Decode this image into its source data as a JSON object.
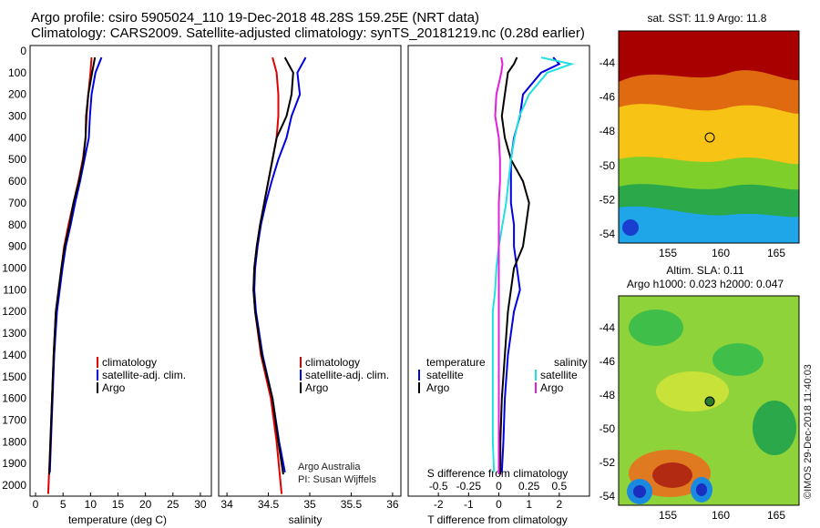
{
  "header": {
    "title_line1": "Argo profile: csiro 5905024_110 19-Dec-2018 48.28S 159.25E (NRT data)",
    "title_line2": "Climatology: CARS2009. Satellite-adjusted climatology: synTS_20181219.nc (0.28d earlier)"
  },
  "panels": {
    "temperature": {
      "xlabel": "temperature (deg C)"
    },
    "salinity": {
      "xlabel": "salinity"
    },
    "difference": {
      "xlabel": "T difference from climatology",
      "s_label": "S difference from climatology"
    }
  },
  "legends": {
    "climatology": "climatology",
    "satellite_adj": "satellite-adj. clim.",
    "argo": "Argo",
    "temperature": "temperature",
    "salinity": "salinity",
    "satellite": "satellite"
  },
  "credits": {
    "org": "Argo Australia",
    "pi": "PI: Susan Wijffels",
    "timestamp": "©IMOS 29-Dec-2018 11:40:03"
  },
  "maps": {
    "sst": {
      "title": "sat. SST: 11.9  Argo: 11.8",
      "xticks": [
        "155",
        "160",
        "165"
      ],
      "yticks": [
        "-44",
        "-46",
        "-48",
        "-50",
        "-52",
        "-54"
      ]
    },
    "sla": {
      "title_line1": "Altim. SLA: 0.11",
      "title_line2": "Argo h1000: 0.023 h2000: 0.047",
      "xticks": [
        "155",
        "160",
        "165"
      ],
      "yticks": [
        "-44",
        "-46",
        "-48",
        "-50",
        "-52",
        "-54"
      ]
    }
  },
  "colors": {
    "climatology": "#e00000",
    "satellite": "#0000e0",
    "argo": "#000000",
    "s_satellite": "#22e0e0",
    "s_argo": "#e020e0"
  },
  "chart_data": [
    {
      "type": "line",
      "xlabel": "temperature (deg C)",
      "ylabel": "",
      "xlim": [
        -1,
        32
      ],
      "ylim": [
        2050,
        0
      ],
      "xticks": [
        0,
        5,
        10,
        15,
        20,
        25,
        30
      ],
      "yticks": [
        0,
        100,
        200,
        300,
        400,
        500,
        600,
        700,
        800,
        900,
        1000,
        1100,
        1200,
        1300,
        1400,
        1500,
        1600,
        1700,
        1800,
        1900,
        2000
      ],
      "series": [
        {
          "name": "climatology",
          "depth": [
            30,
            100,
            200,
            300,
            400,
            500,
            600,
            700,
            800,
            900,
            1000,
            1200,
            1400,
            1600,
            1800,
            2040
          ],
          "values": [
            10.2,
            10.0,
            9.6,
            9.3,
            9.1,
            8.6,
            7.8,
            6.9,
            6.0,
            5.2,
            4.7,
            3.7,
            3.3,
            3.0,
            2.7,
            2.3
          ]
        },
        {
          "name": "satellite-adj. clim.",
          "depth": [
            30,
            100,
            200,
            300,
            400,
            500,
            600,
            700,
            800,
            900,
            1000,
            1200,
            1400,
            1600,
            1800,
            1940
          ],
          "values": [
            12.0,
            10.9,
            10.2,
            9.9,
            9.7,
            8.9,
            8.1,
            7.2,
            6.4,
            5.5,
            4.9,
            3.9,
            3.4,
            3.1,
            2.8,
            2.6
          ]
        },
        {
          "name": "Argo",
          "depth": [
            30,
            100,
            200,
            300,
            400,
            500,
            600,
            700,
            800,
            900,
            1000,
            1200,
            1400,
            1600,
            1800,
            1950
          ],
          "values": [
            10.8,
            10.3,
            9.6,
            9.2,
            9.1,
            8.7,
            7.9,
            6.9,
            6.2,
            5.3,
            4.7,
            3.7,
            3.3,
            3.0,
            2.7,
            2.5
          ]
        }
      ]
    },
    {
      "type": "line",
      "xlabel": "salinity",
      "ylabel": "",
      "xlim": [
        33.9,
        36.1
      ],
      "ylim": [
        2050,
        0
      ],
      "xticks": [
        34,
        34.5,
        35,
        35.5,
        36
      ],
      "series": [
        {
          "name": "climatology",
          "depth": [
            30,
            100,
            200,
            300,
            400,
            500,
            600,
            700,
            800,
            900,
            1000,
            1100,
            1200,
            1400,
            1600,
            1800,
            2040
          ],
          "values": [
            34.55,
            34.6,
            34.62,
            34.62,
            34.6,
            34.55,
            34.5,
            34.45,
            34.4,
            34.36,
            34.33,
            34.32,
            34.34,
            34.41,
            34.53,
            34.6,
            34.66
          ]
        },
        {
          "name": "satellite-adj. clim.",
          "depth": [
            30,
            100,
            200,
            300,
            400,
            500,
            600,
            700,
            800,
            900,
            1000,
            1100,
            1200,
            1400,
            1600,
            1800,
            1940
          ],
          "values": [
            34.95,
            34.85,
            34.88,
            34.78,
            34.72,
            34.62,
            34.54,
            34.47,
            34.41,
            34.37,
            34.34,
            34.33,
            34.35,
            34.43,
            34.55,
            34.63,
            34.7
          ]
        },
        {
          "name": "Argo",
          "depth": [
            30,
            100,
            200,
            300,
            400,
            500,
            600,
            700,
            800,
            900,
            1000,
            1100,
            1200,
            1400,
            1600,
            1800,
            1950
          ],
          "values": [
            34.7,
            34.8,
            34.78,
            34.72,
            34.6,
            34.55,
            34.5,
            34.45,
            34.4,
            34.36,
            34.33,
            34.32,
            34.34,
            34.42,
            34.55,
            34.62,
            34.68
          ]
        }
      ]
    },
    {
      "type": "line",
      "xlabel": "T difference from climatology",
      "ylabel": "",
      "xlim": [
        -3,
        3
      ],
      "ylim": [
        2050,
        0
      ],
      "xticks": [
        -2,
        -1,
        0,
        1,
        2
      ],
      "secondary_xlabel": "S difference from climatology",
      "secondary_xticks": [
        "-0.5",
        "-0.25",
        "0",
        "0.25",
        "0.5"
      ],
      "series": [
        {
          "name": "temperature satellite",
          "depth": [
            30,
            60,
            100,
            200,
            300,
            400,
            500,
            600,
            700,
            800,
            900,
            1000,
            1100,
            1200,
            1400,
            1600,
            1800,
            1940
          ],
          "values": [
            1.8,
            2.0,
            1.4,
            0.8,
            0.7,
            0.5,
            0.4,
            0.4,
            0.4,
            0.5,
            0.5,
            0.6,
            0.7,
            0.5,
            0.3,
            0.2,
            0.15,
            0.1
          ]
        },
        {
          "name": "temperature Argo",
          "depth": [
            30,
            60,
            100,
            200,
            300,
            400,
            500,
            600,
            700,
            800,
            900,
            1000,
            1100,
            1200,
            1400,
            1600,
            1800,
            1950
          ],
          "values": [
            0.6,
            0.5,
            0.3,
            0.2,
            0.1,
            0.2,
            0.4,
            0.8,
            1.0,
            0.9,
            0.8,
            0.5,
            0.4,
            0.3,
            0.2,
            0.1,
            0.05,
            0.05
          ]
        },
        {
          "name": "salinity satellite",
          "depth": [
            30,
            60,
            100,
            200,
            300,
            400,
            500,
            600,
            700,
            800,
            900,
            1000,
            1100,
            1200,
            1400,
            1600,
            1800,
            1940
          ],
          "values": [
            0.35,
            0.6,
            0.4,
            0.25,
            0.17,
            0.13,
            0.1,
            0.08,
            0.06,
            0.03,
            0.0,
            -0.02,
            -0.03,
            -0.05,
            -0.05,
            -0.05,
            -0.05,
            -0.04
          ]
        },
        {
          "name": "salinity Argo",
          "depth": [
            30,
            60,
            100,
            200,
            300,
            400,
            500,
            600,
            700,
            800,
            900,
            1000,
            1100,
            1200,
            1400,
            1600,
            1800,
            1950
          ],
          "values": [
            0.02,
            0.03,
            0.02,
            -0.02,
            -0.03,
            0.0,
            0.01,
            0.01,
            0.0,
            0.0,
            0.0,
            0.0,
            0.0,
            0.0,
            0.0,
            0.0,
            0.0,
            0.0
          ]
        }
      ]
    }
  ]
}
